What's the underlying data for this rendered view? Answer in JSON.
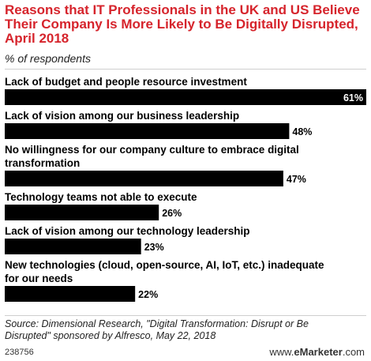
{
  "chart_data": {
    "type": "bar",
    "orientation": "horizontal",
    "title": "Reasons that IT Professionals in the UK and US Believe Their Company Is More Likely to Be Digitally Disrupted, April 2018",
    "subtitle": "% of respondents",
    "categories": [
      [
        "Lack of budget and people resource investment"
      ],
      [
        "Lack of vision among our business leadership"
      ],
      [
        "No willingness for our company culture to embrace digital",
        "transformation"
      ],
      [
        "Technology teams not able to execute"
      ],
      [
        "Lack of vision among our technology leadership"
      ],
      [
        "New technologies (cloud, open-source, AI, IoT, etc.) inadequate",
        "for our needs"
      ]
    ],
    "values": [
      61,
      48,
      47,
      26,
      23,
      22
    ],
    "value_labels": [
      "61%",
      "48%",
      "47%",
      "26%",
      "23%",
      "22%"
    ],
    "xlim": [
      0,
      61
    ],
    "grid": false,
    "bar_color": "#000000",
    "inside_label_color": "#ffffff",
    "outside_label_color": "#000000"
  },
  "footer": {
    "source_line1": "Source: Dimensional Research, \"Digital Transformation: Disrupt or Be",
    "source_line2": "Disrupted\" sponsored by Alfresco, May 22, 2018",
    "chart_id": "238756",
    "brand_url": "www.",
    "brand_name": "eMarketer",
    "brand_suffix": ".com"
  }
}
